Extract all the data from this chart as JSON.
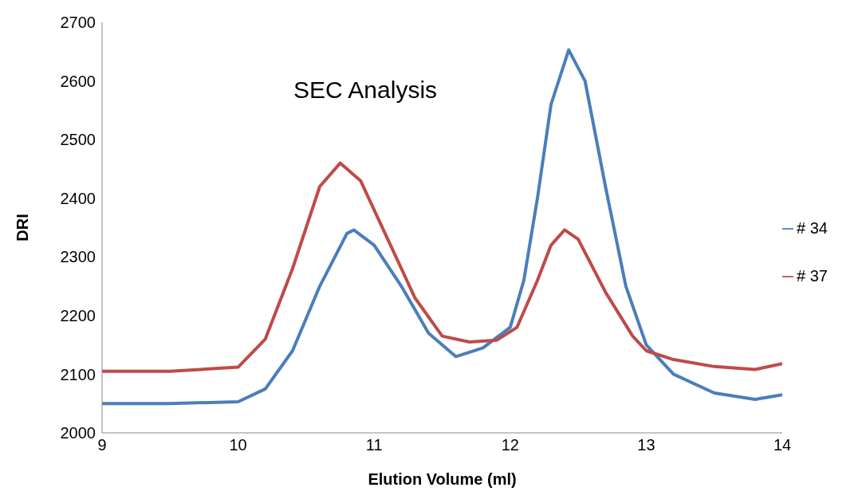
{
  "chart_data": {
    "type": "line",
    "title": "SEC Analysis",
    "xlabel": "Elution Volume (ml)",
    "ylabel": "DRI",
    "xlim": [
      9,
      14
    ],
    "xticks": [
      9,
      10,
      11,
      12,
      13,
      14
    ],
    "ylim": [
      2000,
      2700
    ],
    "yticks": [
      2000,
      2100,
      2200,
      2300,
      2400,
      2500,
      2600,
      2700
    ],
    "grid": false,
    "legend": "right",
    "marker": "none",
    "line_style": "solid",
    "series": [
      {
        "name": "# 34",
        "color": "#4a7ebb",
        "x": [
          9,
          9.5,
          10,
          10.2,
          10.4,
          10.6,
          10.8,
          10.85,
          11,
          11.2,
          11.4,
          11.6,
          11.8,
          12,
          12.1,
          12.2,
          12.3,
          12.43,
          12.55,
          12.7,
          12.85,
          13,
          13.2,
          13.5,
          13.8,
          14
        ],
        "values": [
          2050,
          2050,
          2053,
          2075,
          2140,
          2250,
          2340,
          2346,
          2320,
          2250,
          2170,
          2130,
          2145,
          2180,
          2260,
          2400,
          2560,
          2653,
          2600,
          2420,
          2250,
          2150,
          2100,
          2068,
          2057,
          2065
        ]
      },
      {
        "name": "# 37",
        "color": "#be4b48",
        "x": [
          9,
          9.5,
          10,
          10.2,
          10.4,
          10.6,
          10.75,
          10.9,
          11.1,
          11.3,
          11.5,
          11.7,
          11.9,
          12.05,
          12.2,
          12.3,
          12.4,
          12.5,
          12.7,
          12.9,
          13,
          13.2,
          13.5,
          13.8,
          14
        ],
        "values": [
          2105,
          2105,
          2112,
          2160,
          2280,
          2420,
          2460,
          2430,
          2330,
          2230,
          2165,
          2155,
          2158,
          2180,
          2260,
          2320,
          2346,
          2330,
          2240,
          2165,
          2140,
          2125,
          2113,
          2108,
          2118
        ]
      }
    ]
  }
}
